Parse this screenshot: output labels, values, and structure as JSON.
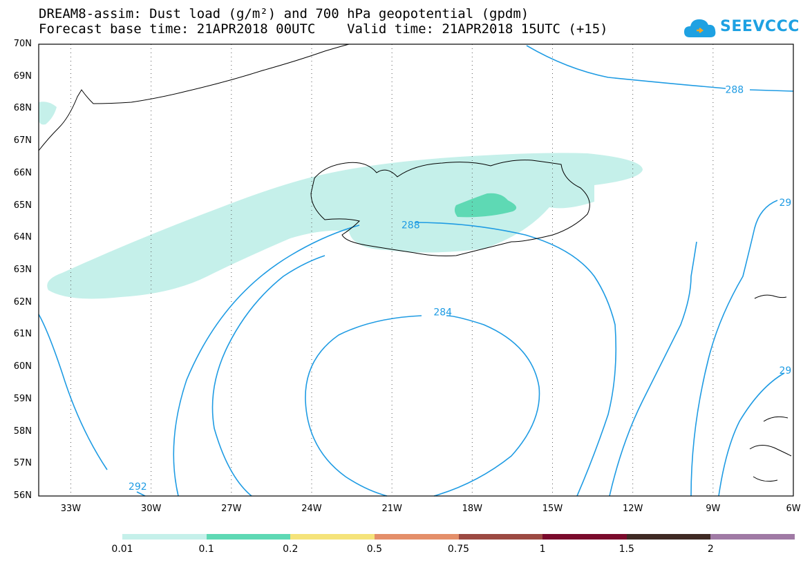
{
  "title_line1": "DREAM8-assim: Dust load (g/m²) and 700 hPa geopotential (gpdm)",
  "title_line2": "Forecast base time: 21APR2018 00UTC    Valid time: 21APR2018 15UTC (+15)",
  "logo_text": "SEEVCCC",
  "logo_icon": "cloud-icon",
  "map": {
    "lon_range": [
      -34.2,
      -6.0
    ],
    "lat_range": [
      56,
      70
    ],
    "lat_ticks": [
      "70N",
      "69N",
      "68N",
      "67N",
      "66N",
      "65N",
      "64N",
      "63N",
      "62N",
      "61N",
      "60N",
      "59N",
      "58N",
      "57N",
      "56N"
    ],
    "lon_ticks": [
      "33W",
      "30W",
      "27W",
      "24W",
      "21W",
      "18W",
      "15W",
      "12W",
      "9W",
      "6W"
    ],
    "grid": "dotted",
    "contour_color": "#1e9be3",
    "contour_labels": [
      {
        "text": "288",
        "lon": -8.2,
        "lat": 68.6
      },
      {
        "text": "288",
        "lon": -20.3,
        "lat": 64.4
      },
      {
        "text": "284",
        "lon": -19.1,
        "lat": 61.7
      },
      {
        "text": "292",
        "lon": -30.5,
        "lat": 56.3
      },
      {
        "text": "29",
        "lon": -6.3,
        "lat": 65.1
      },
      {
        "text": "29",
        "lon": -6.3,
        "lat": 59.9
      }
    ]
  },
  "legend": {
    "colors": [
      "#c5f0ea",
      "#5ed9b4",
      "#f5e37a",
      "#e48f6a",
      "#9c4a42",
      "#7a0a2c",
      "#3f2a24",
      "#a07aa5"
    ],
    "labels": [
      "0.01",
      "0.1",
      "0.2",
      "0.5",
      "0.75",
      "1",
      "1.5",
      "2"
    ]
  }
}
